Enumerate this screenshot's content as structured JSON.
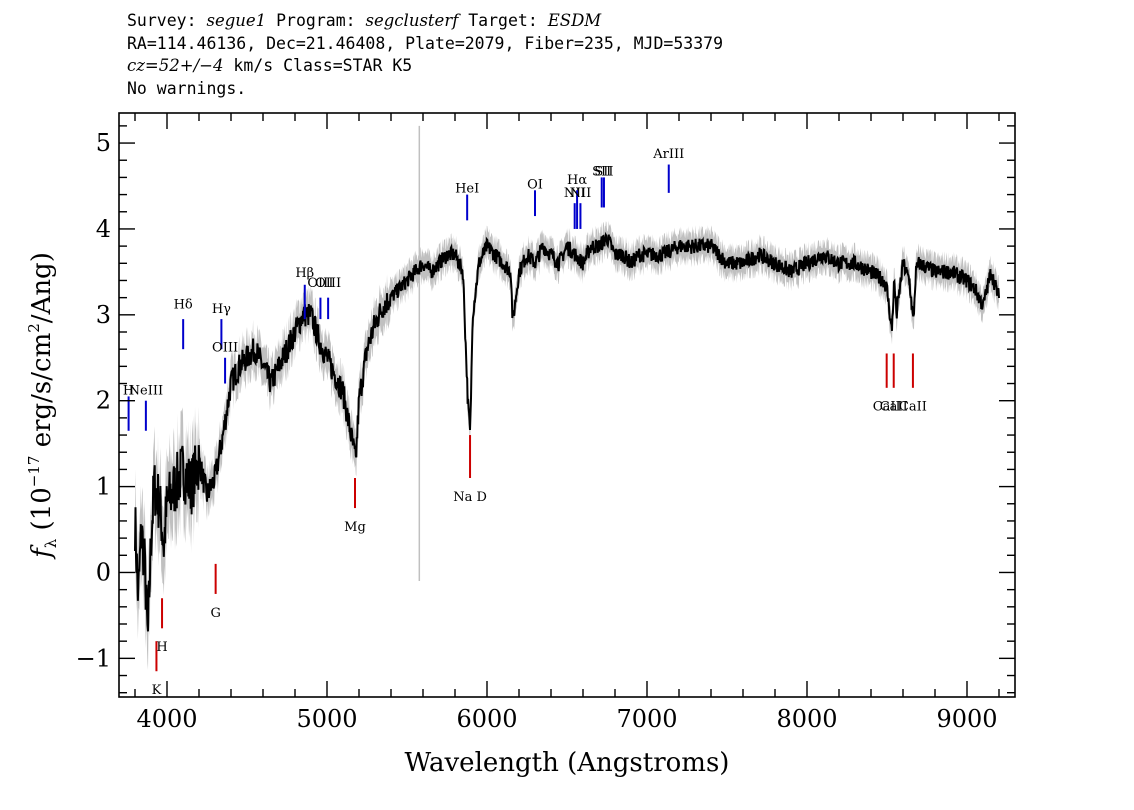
{
  "header": {
    "l1_survey_label": "Survey: ",
    "l1_survey": "segue1",
    "l1_program_label": " Program: ",
    "l1_program": "segclusterf",
    "l1_target_label": " Target: ",
    "l1_target": "ESDM",
    "l2": "RA=114.46136, Dec=21.46408, Plate=2079, Fiber=235, MJD=53379",
    "l3_cz": "cz=52+/−4",
    "l3_rest": " km/s Class=STAR K5",
    "l4": "No warnings."
  },
  "chart_data": {
    "type": "line",
    "title": "",
    "xlabel": "Wavelength (Angstroms)",
    "ylabel": "fλ (10⁻¹⁷ erg/s/cm²/Ang)",
    "ylabel_parts": {
      "f": "f",
      "sub": "λ",
      "a": " (10",
      "exp1": "−17",
      "b": " erg/s/cm",
      "exp2": "2",
      "c": "/Ang)"
    },
    "xlim": [
      3700,
      9300
    ],
    "ylim": [
      -1.45,
      5.35
    ],
    "xticks": [
      4000,
      5000,
      6000,
      7000,
      8000,
      9000
    ],
    "xtick_labels": [
      "4000",
      "5000",
      "6000",
      "7000",
      "8000",
      "9000"
    ],
    "yticks": [
      -1,
      0,
      1,
      2,
      3,
      4,
      5
    ],
    "ytick_labels": [
      "−1",
      "0",
      "1",
      "2",
      "3",
      "4",
      "5"
    ],
    "x_minor_step": 200,
    "y_minor_step": 0.2,
    "series": [
      {
        "color": "#000000",
        "x": [
          3800,
          3820,
          3840,
          3860,
          3880,
          3900,
          3920,
          3940,
          3960,
          3980,
          4000,
          4050,
          4100,
          4150,
          4200,
          4250,
          4300,
          4350,
          4400,
          4450,
          4500,
          4550,
          4600,
          4650,
          4700,
          4750,
          4800,
          4850,
          4900,
          4950,
          5000,
          5050,
          5100,
          5150,
          5180,
          5200,
          5250,
          5300,
          5350,
          5400,
          5450,
          5500,
          5550,
          5600,
          5650,
          5700,
          5750,
          5800,
          5850,
          5880,
          5895,
          5910,
          5950,
          6000,
          6050,
          6100,
          6150,
          6160,
          6200,
          6250,
          6300,
          6350,
          6400,
          6450,
          6500,
          6550,
          6600,
          6650,
          6700,
          6750,
          6800,
          6850,
          6900,
          6950,
          7000,
          7100,
          7200,
          7300,
          7400,
          7500,
          7600,
          7700,
          7800,
          7900,
          8000,
          8100,
          8200,
          8300,
          8400,
          8480,
          8500,
          8530,
          8545,
          8560,
          8600,
          8640,
          8665,
          8680,
          8700,
          8800,
          8900,
          9000,
          9050,
          9100,
          9150,
          9200
        ],
        "values": [
          0.6,
          -0.3,
          0.5,
          0.1,
          -0.8,
          0.4,
          1.0,
          0.9,
          0.7,
          0.3,
          0.8,
          1.0,
          1.2,
          1.0,
          1.3,
          0.9,
          1.1,
          1.6,
          2.2,
          2.4,
          2.5,
          2.6,
          2.4,
          2.2,
          2.4,
          2.6,
          2.8,
          3.0,
          3.0,
          2.7,
          2.5,
          2.3,
          2.1,
          1.6,
          1.3,
          2.0,
          2.6,
          2.9,
          3.1,
          3.2,
          3.3,
          3.4,
          3.5,
          3.6,
          3.5,
          3.6,
          3.7,
          3.7,
          3.5,
          2.0,
          1.6,
          3.0,
          3.6,
          3.8,
          3.7,
          3.6,
          3.5,
          2.9,
          3.5,
          3.7,
          3.6,
          3.8,
          3.7,
          3.6,
          3.8,
          3.7,
          3.6,
          3.8,
          3.8,
          3.9,
          3.7,
          3.7,
          3.6,
          3.7,
          3.7,
          3.7,
          3.8,
          3.8,
          3.8,
          3.6,
          3.6,
          3.7,
          3.6,
          3.5,
          3.6,
          3.7,
          3.6,
          3.6,
          3.5,
          3.4,
          3.3,
          2.8,
          3.4,
          3.0,
          3.6,
          3.4,
          2.9,
          3.5,
          3.6,
          3.5,
          3.5,
          3.4,
          3.3,
          3.1,
          3.5,
          3.2
        ]
      }
    ],
    "emission_lines": [
      {
        "label": "H",
        "x": 3760,
        "tick_bottom": 1.65,
        "tick_top": 2.05,
        "label_y": 2.05
      },
      {
        "label": "NeIII",
        "x": 3868,
        "tick_bottom": 1.65,
        "tick_top": 2.0,
        "label_y": 2.05
      },
      {
        "label": "Hδ",
        "x": 4101,
        "tick_bottom": 2.6,
        "tick_top": 2.95,
        "label_y": 3.05
      },
      {
        "label": "Hγ",
        "x": 4340,
        "tick_bottom": 2.6,
        "tick_top": 2.95,
        "label_y": 3.0
      },
      {
        "label": "OIII",
        "x": 4363,
        "tick_bottom": 2.2,
        "tick_top": 2.5,
        "label_y": 2.55
      },
      {
        "label": "Hβ",
        "x": 4861,
        "tick_bottom": 2.95,
        "tick_top": 3.35,
        "label_y": 3.42
      },
      {
        "label": "OIII",
        "x": 4959,
        "tick_bottom": 2.95,
        "tick_top": 3.2,
        "label_y": 3.3
      },
      {
        "label": "OIII",
        "x": 5007,
        "tick_bottom": 2.95,
        "tick_top": 3.2,
        "label_y": 3.3
      },
      {
        "label": "HeI",
        "x": 5876,
        "tick_bottom": 4.1,
        "tick_top": 4.4,
        "label_y": 4.4
      },
      {
        "label": "OI",
        "x": 6300,
        "tick_bottom": 4.15,
        "tick_top": 4.45,
        "label_y": 4.45
      },
      {
        "label": "NII",
        "x": 6548,
        "tick_bottom": 4.0,
        "tick_top": 4.3,
        "label_y": 4.35
      },
      {
        "label": "Hα",
        "x": 6563,
        "tick_bottom": 4.0,
        "tick_top": 4.45,
        "label_y": 4.5
      },
      {
        "label": "NII",
        "x": 6584,
        "tick_bottom": 4.0,
        "tick_top": 4.3,
        "label_y": 4.35
      },
      {
        "label": "SII",
        "x": 6717,
        "tick_bottom": 4.25,
        "tick_top": 4.6,
        "label_y": 4.6
      },
      {
        "label": "SII",
        "x": 6731,
        "tick_bottom": 4.25,
        "tick_top": 4.6,
        "label_y": 4.6
      },
      {
        "label": "ArIII",
        "x": 7136,
        "tick_bottom": 4.42,
        "tick_top": 4.75,
        "label_y": 4.8
      }
    ],
    "absorption_lines": [
      {
        "label": "K",
        "x": 3934,
        "tick_top": -0.8,
        "tick_bottom": -1.15,
        "label_y": -1.3
      },
      {
        "label": "H",
        "x": 3969,
        "tick_top": -0.3,
        "tick_bottom": -0.65,
        "label_y": -0.8
      },
      {
        "label": "G",
        "x": 4304,
        "tick_top": 0.1,
        "tick_bottom": -0.25,
        "label_y": -0.4
      },
      {
        "label": "Mg",
        "x": 5175,
        "tick_top": 1.1,
        "tick_bottom": 0.75,
        "label_y": 0.6
      },
      {
        "label": "Na D",
        "x": 5894,
        "tick_top": 1.6,
        "tick_bottom": 1.1,
        "label_y": 0.95
      },
      {
        "label": "CaII",
        "x": 8498,
        "tick_top": 2.55,
        "tick_bottom": 2.15,
        "label_y": 2.0
      },
      {
        "label": "CaII",
        "x": 8542,
        "tick_top": 2.55,
        "tick_bottom": 2.15,
        "label_y": 2.0
      },
      {
        "label": "CaII",
        "x": 8662,
        "tick_top": 2.55,
        "tick_bottom": 2.15,
        "label_y": 2.0
      }
    ],
    "colors": {
      "flux": "#000000",
      "error": "#c0c0c0",
      "emission": "#0000cc",
      "absorption": "#cc0000"
    }
  }
}
